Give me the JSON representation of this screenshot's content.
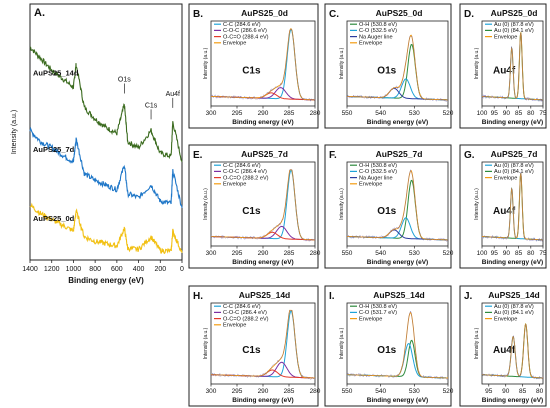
{
  "panel_a": {
    "letter": "A.",
    "xlabel": "Binding energy (eV)",
    "ylabel": "Intensity (a.u.)",
    "xticks": [
      "1400",
      "1200",
      "1000",
      "800",
      "600",
      "400",
      "200",
      "0"
    ],
    "peak_labels": [
      "O1s",
      "C1s",
      "Au4f"
    ],
    "series_labels": [
      "AuPS25_14d",
      "AuPS25_7d",
      "AuPS25_0d"
    ],
    "colors": [
      "#3b6b1f",
      "#1f77c8",
      "#f2c012"
    ]
  },
  "chart_data": [
    {
      "type": "line",
      "panel": "A.",
      "xlabel": "Binding energy (eV)",
      "ylabel": "Intensity (a.u.)",
      "xlim": [
        1400,
        0
      ],
      "x_reversed": true,
      "series": [
        {
          "name": "AuPS25_14d",
          "color": "#3b6b1f",
          "x": [
            1400,
            1300,
            1200,
            1100,
            1000,
            975,
            900,
            800,
            700,
            600,
            531,
            500,
            400,
            285,
            200,
            100,
            85,
            0
          ],
          "y": [
            3.6,
            3.4,
            3.2,
            3.05,
            2.9,
            3.3,
            2.55,
            2.35,
            2.2,
            2.1,
            2.6,
            1.95,
            1.85,
            2.15,
            1.75,
            1.7,
            2.3,
            1.6
          ]
        },
        {
          "name": "AuPS25_7d",
          "color": "#1f77c8",
          "x": [
            1400,
            1300,
            1200,
            1100,
            1000,
            975,
            900,
            800,
            700,
            600,
            531,
            500,
            400,
            285,
            200,
            100,
            85,
            0
          ],
          "y": [
            2.15,
            1.95,
            1.85,
            1.72,
            1.6,
            2.0,
            1.4,
            1.28,
            1.2,
            1.12,
            1.55,
            1.05,
            0.98,
            1.2,
            0.92,
            0.88,
            1.45,
            0.8
          ]
        },
        {
          "name": "AuPS25_0d",
          "color": "#f2c012",
          "x": [
            1400,
            1300,
            1200,
            1100,
            1000,
            975,
            900,
            800,
            700,
            600,
            531,
            500,
            400,
            285,
            200,
            100,
            85,
            0
          ],
          "y": [
            0.85,
            0.7,
            0.6,
            0.5,
            0.4,
            0.75,
            0.3,
            0.22,
            0.18,
            0.14,
            0.45,
            0.1,
            0.08,
            0.3,
            0.06,
            0.05,
            0.4,
            0.02
          ]
        }
      ]
    },
    {
      "type": "line",
      "panel": "B.",
      "title": "AuPS25_0d",
      "element": "C1s",
      "xlabel": "Binding energy (eV)",
      "ylabel": "Intensity (a.u.)",
      "xlim": [
        300,
        280
      ],
      "x_reversed": true,
      "ticks": [
        "300",
        "295",
        "290",
        "285",
        "280"
      ],
      "legend": [
        "C-C (284.6 eV)",
        "C-O-C (286.6 eV)",
        "O-C=O (288.4 eV)",
        "Envelope"
      ],
      "series": [
        {
          "name": "C-C (284.6 eV)",
          "color": "#1fa3d8",
          "center": 284.6,
          "height": 1.0,
          "width": 0.75
        },
        {
          "name": "C-O-C (286.6 eV)",
          "color": "#7b2fa3",
          "center": 286.6,
          "height": 0.16,
          "width": 1.0
        },
        {
          "name": "O-C=O (288.4 eV)",
          "color": "#e33a2a",
          "center": 288.4,
          "height": 0.08,
          "width": 1.0
        },
        {
          "name": "Envelope",
          "color": "#f39c12"
        }
      ]
    },
    {
      "type": "line",
      "panel": "C.",
      "title": "AuPS25_0d",
      "element": "O1s",
      "xlabel": "Binding energy (eV)",
      "ylabel": "Intensity (a.u.)",
      "xlim": [
        550,
        520
      ],
      "x_reversed": true,
      "ticks": [
        "550",
        "540",
        "530",
        "520"
      ],
      "legend": [
        "O-H (530.8 eV)",
        "C-O (532.5 eV)",
        "Na Auger line",
        "Envelope"
      ],
      "series": [
        {
          "name": "O-H (530.8 eV)",
          "color": "#2e8b3e",
          "center": 530.8,
          "height": 0.78,
          "width": 1.1
        },
        {
          "name": "C-O (532.5 eV)",
          "color": "#1fa3d8",
          "center": 532.5,
          "height": 0.28,
          "width": 1.3
        },
        {
          "name": "Na Auger line",
          "color": "#2b3b9e",
          "center": 536.0,
          "height": 0.14,
          "width": 1.4
        },
        {
          "name": "Envelope",
          "color": "#f39c12"
        }
      ]
    },
    {
      "type": "line",
      "panel": "D.",
      "title": "AuPS25_0d",
      "element": "Au4f",
      "xlabel": "Binding energy (eV)",
      "ylabel": "Intensity (a.u.)",
      "xlim": [
        100,
        75
      ],
      "x_reversed": true,
      "ticks": [
        "100",
        "95",
        "90",
        "85",
        "80",
        "75"
      ],
      "legend": [
        "Au (0) (87.8 eV)",
        "Au (0) (84.1 eV)",
        "Envelope"
      ],
      "series": [
        {
          "name": "Au (0) (87.8 eV)",
          "color": "#1fa3d8",
          "center": 87.8,
          "height": 0.72,
          "width": 0.55
        },
        {
          "name": "Au (0) (84.1 eV)",
          "color": "#2e8b3e",
          "center": 84.1,
          "height": 0.95,
          "width": 0.55
        },
        {
          "name": "Envelope",
          "color": "#f39c12"
        }
      ]
    },
    {
      "type": "line",
      "panel": "E.",
      "title": "AuPS25_7d",
      "element": "C1s",
      "xlabel": "Binding energy (eV)",
      "ylabel": "Intensity (a.u.)",
      "xlim": [
        300,
        280
      ],
      "x_reversed": true,
      "ticks": [
        "300",
        "295",
        "290",
        "285",
        "280"
      ],
      "legend": [
        "C-C (284.6 eV)",
        "C-O-C (286.4 eV)",
        "O-C=O (288.2 eV)",
        "Envelope"
      ],
      "series": [
        {
          "name": "C-C (284.6 eV)",
          "color": "#1fa3d8",
          "center": 284.6,
          "height": 1.0,
          "width": 0.75
        },
        {
          "name": "C-O-C (286.4 eV)",
          "color": "#7b2fa3",
          "center": 286.4,
          "height": 0.18,
          "width": 1.0
        },
        {
          "name": "O-C=O (288.2 eV)",
          "color": "#e33a2a",
          "center": 288.2,
          "height": 0.09,
          "width": 1.0
        },
        {
          "name": "Envelope",
          "color": "#f39c12"
        }
      ]
    },
    {
      "type": "line",
      "panel": "F.",
      "title": "AuPS25_7d",
      "element": "O1s",
      "xlabel": "Binding energy (eV)",
      "ylabel": "Intensity (a.u.)",
      "xlim": [
        550,
        520
      ],
      "x_reversed": true,
      "ticks": [
        "550",
        "540",
        "530",
        "520"
      ],
      "legend": [
        "O-H (530.8 eV)",
        "C-O (532.5 eV)",
        "Na Auger line",
        "Envelope"
      ],
      "series": [
        {
          "name": "O-H (530.8 eV)",
          "color": "#2e8b3e",
          "center": 530.8,
          "height": 0.85,
          "width": 1.1
        },
        {
          "name": "C-O (532.5 eV)",
          "color": "#1fa3d8",
          "center": 532.5,
          "height": 0.3,
          "width": 1.3
        },
        {
          "name": "Na Auger line",
          "color": "#2b3b9e",
          "center": 536.0,
          "height": 0.12,
          "width": 1.4
        },
        {
          "name": "Envelope",
          "color": "#f39c12"
        }
      ]
    },
    {
      "type": "line",
      "panel": "G.",
      "title": "AuPS25_7d",
      "element": "Au4f",
      "xlabel": "Binding energy (eV)",
      "ylabel": "Intensity (a.u.)",
      "xlim": [
        100,
        75
      ],
      "x_reversed": true,
      "ticks": [
        "100",
        "95",
        "90",
        "85",
        "80",
        "75"
      ],
      "legend": [
        "Au (0) (87.8 eV)",
        "Au (0) (84.1 eV)",
        "Envelope"
      ],
      "series": [
        {
          "name": "Au (0) (87.8 eV)",
          "color": "#1fa3d8",
          "center": 87.8,
          "height": 0.72,
          "width": 0.55
        },
        {
          "name": "Au (0) (84.1 eV)",
          "color": "#2e8b3e",
          "center": 84.1,
          "height": 0.95,
          "width": 0.55
        },
        {
          "name": "Envelope",
          "color": "#f39c12"
        }
      ]
    },
    {
      "type": "line",
      "panel": "H.",
      "title": "AuPS25_14d",
      "element": "C1s",
      "xlabel": "Binding energy (eV)",
      "ylabel": "Intensity (a.u.)",
      "xlim": [
        300,
        280
      ],
      "x_reversed": true,
      "ticks": [
        "300",
        "295",
        "290",
        "285",
        "280"
      ],
      "legend": [
        "C-C (284.6 eV)",
        "C-O-C (286.4 eV)",
        "O-C=O (288.2 eV)",
        "Envelope"
      ],
      "series": [
        {
          "name": "C-C (284.6 eV)",
          "color": "#1fa3d8",
          "center": 284.6,
          "height": 1.0,
          "width": 0.75
        },
        {
          "name": "C-O-C (286.4 eV)",
          "color": "#7b2fa3",
          "center": 286.4,
          "height": 0.22,
          "width": 1.0
        },
        {
          "name": "O-C=O (288.2 eV)",
          "color": "#e33a2a",
          "center": 288.2,
          "height": 0.1,
          "width": 1.0
        },
        {
          "name": "Envelope",
          "color": "#f39c12"
        }
      ]
    },
    {
      "type": "line",
      "panel": "I.",
      "title": "AuPS25_14d",
      "element": "O1s",
      "xlabel": "Binding energy (eV)",
      "ylabel": "Intensity (a.u.)",
      "xlim": [
        550,
        520
      ],
      "x_reversed": true,
      "ticks": [
        "550",
        "540",
        "530",
        "520"
      ],
      "legend": [
        "O-H (530.8 eV)",
        "C-O (531.7 eV)",
        "Envelope"
      ],
      "series": [
        {
          "name": "O-H (530.8 eV)",
          "color": "#2e8b3e",
          "center": 530.8,
          "height": 0.55,
          "width": 1.0
        },
        {
          "name": "C-O (531.7 eV)",
          "color": "#1fa3d8",
          "center": 531.7,
          "height": 0.5,
          "width": 1.2
        },
        {
          "name": "Envelope",
          "color": "#f39c12"
        }
      ]
    },
    {
      "type": "line",
      "panel": "J.",
      "title": "AuPS25_14d",
      "element": "Au4f",
      "xlabel": "Binding energy (eV)",
      "ylabel": "Intensity (a.u.)",
      "xlim": [
        97,
        79
      ],
      "x_reversed": true,
      "ticks": [
        "95",
        "90",
        "85",
        "80"
      ],
      "legend": [
        "Au (0) (87.8 eV)",
        "Au (0) (84.1 eV)",
        "Envelope"
      ],
      "series": [
        {
          "name": "Au (0) (87.8 eV)",
          "color": "#1fa3d8",
          "center": 87.8,
          "height": 0.6,
          "width": 0.6
        },
        {
          "name": "Au (0) (84.1 eV)",
          "color": "#2e8b3e",
          "center": 84.1,
          "height": 0.8,
          "width": 0.6
        },
        {
          "name": "Envelope",
          "color": "#f39c12"
        }
      ]
    }
  ]
}
